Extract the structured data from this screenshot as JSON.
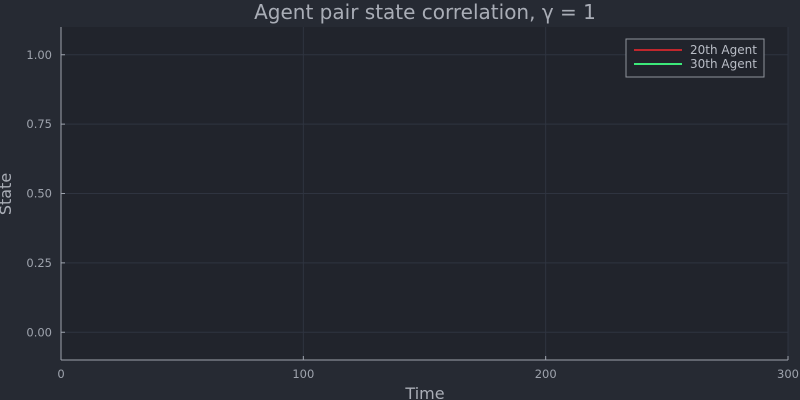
{
  "chart_data": {
    "type": "line",
    "title": "Agent pair state correlation, γ = 1",
    "xlabel": "Time",
    "ylabel": "State",
    "xlim": [
      0,
      300
    ],
    "ylim": [
      -0.1,
      1.1
    ],
    "x_ticks": [
      0,
      100,
      200,
      300
    ],
    "x_tick_labels": [
      "0",
      "100",
      "200",
      "300"
    ],
    "y_ticks": [
      0.0,
      0.25,
      0.5,
      0.75,
      1.0
    ],
    "y_tick_labels": [
      "0.00",
      "0.25",
      "0.50",
      "0.75",
      "1.00"
    ],
    "grid": true,
    "legend_position": "top-right",
    "series": [
      {
        "name": "20th Agent",
        "color": "#c0272d",
        "x": [],
        "y": []
      },
      {
        "name": "30th Agent",
        "color": "#3ce97a",
        "x": [],
        "y": []
      }
    ],
    "colors": {
      "background": "#262a33",
      "plot_area": "#21242c"
    }
  }
}
